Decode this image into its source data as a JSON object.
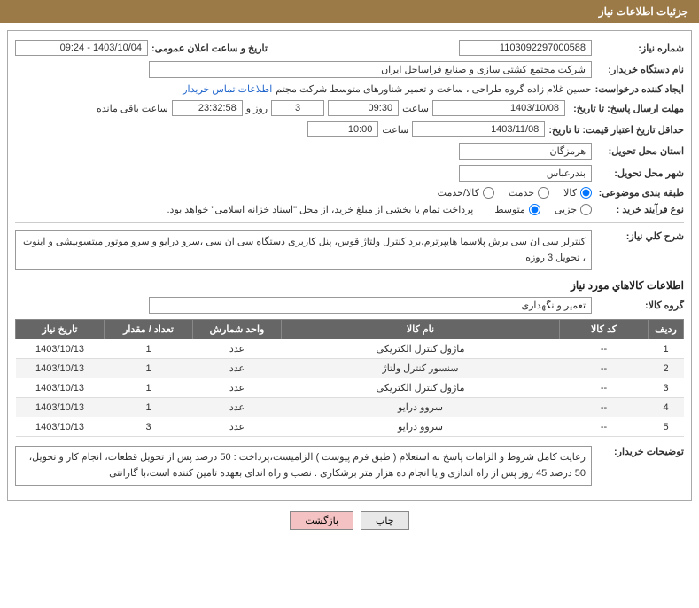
{
  "header": {
    "title": "جزئیات اطلاعات نیاز"
  },
  "fields": {
    "need_number_label": "شماره نیاز:",
    "need_number": "1103092297000588",
    "announce_date_label": "تاریخ و ساعت اعلان عمومی:",
    "announce_date": "1403/10/04 - 09:24",
    "buyer_org_label": "نام دستگاه خریدار:",
    "buyer_org": "شرکت مجتمع کشتی سازی و صنایع فراساحل ایران",
    "requester_label": "ایجاد کننده درخواست:",
    "requester": "حسین  غلام زاده گروه طراحی ، ساخت و تعمیر شناورهای متوسط شرکت مجتم",
    "contact_link": "اطلاعات تماس خریدار",
    "response_deadline_label": "مهلت ارسال پاسخ: تا تاریخ:",
    "response_deadline_date": "1403/10/08",
    "hour_label": "ساعت",
    "response_deadline_time": "09:30",
    "days_remaining": "3",
    "days_and": "روز و",
    "time_remaining": "23:32:58",
    "time_remaining_suffix": "ساعت باقی مانده",
    "price_validity_label": "حداقل تاریخ اعتبار قیمت: تا تاریخ:",
    "price_validity_date": "1403/11/08",
    "price_validity_time": "10:00",
    "province_label": "استان محل تحویل:",
    "province": "هرمزگان",
    "city_label": "شهر محل تحویل:",
    "city": "بندرعباس",
    "category_label": "طبقه بندی موضوعی:",
    "cat_goods": "کالا",
    "cat_service": "خدمت",
    "cat_goods_service": "کالا/خدمت",
    "purchase_type_label": "نوع فرآیند خرید :",
    "pt_small": "جزیی",
    "pt_medium": "متوسط",
    "payment_note": "پرداخت تمام یا بخشی از مبلغ خرید، از محل \"اسناد خزانه اسلامی\" خواهد بود.",
    "desc_label": "شرح کلي نیاز:",
    "desc_text": "کنترلر سی ان سی برش پلاسما هایپرترم،برد کنترل ولتاژ قوس، پنل کاربری دستگاه سی ان سی ،سرو درایو و سرو موتور میتسوبیشی و  اینوت ، تحویل 3 روزه",
    "goods_section_title": "اطلاعات کالاهاي مورد نیاز",
    "group_label": "گروه کالا:",
    "group_value": "تعمیر و نگهداری",
    "buyer_notes_label": "توضیحات خریدار:",
    "buyer_notes_text": "رعایت کامل  شروط و الزامات پاسخ به استعلام ( طبق فرم پیوست ) الزامیست،پرداخت : 50 درصد پس از تحویل قطعات، انجام کار و تحویل، 50 درصد  45 روز پس از راه اندازی و یا انجام ده هزار متر برشکاری . نصب و راه اندای بعهده تامین کننده است،با گارانتی"
  },
  "table": {
    "headers": {
      "row": "ردیف",
      "code": "کد کالا",
      "name": "نام کالا",
      "unit": "واحد شمارش",
      "qty": "تعداد / مقدار",
      "date": "تاریخ نیاز"
    },
    "rows": [
      {
        "row": "1",
        "code": "--",
        "name": "ماژول کنترل الکتریکی",
        "unit": "عدد",
        "qty": "1",
        "date": "1403/10/13"
      },
      {
        "row": "2",
        "code": "--",
        "name": "سنسور کنترل ولتاژ",
        "unit": "عدد",
        "qty": "1",
        "date": "1403/10/13"
      },
      {
        "row": "3",
        "code": "--",
        "name": "ماژول کنترل الکتریکی",
        "unit": "عدد",
        "qty": "1",
        "date": "1403/10/13"
      },
      {
        "row": "4",
        "code": "--",
        "name": "سروو درایو",
        "unit": "عدد",
        "qty": "1",
        "date": "1403/10/13"
      },
      {
        "row": "5",
        "code": "--",
        "name": "سروو درایو",
        "unit": "عدد",
        "qty": "3",
        "date": "1403/10/13"
      }
    ]
  },
  "buttons": {
    "print": "چاپ",
    "back": "بازگشت"
  },
  "colors": {
    "header_bg": "#9c7a47",
    "table_header_bg": "#666666",
    "btn_back_bg": "#f4c2c2",
    "link_color": "#2266cc"
  }
}
